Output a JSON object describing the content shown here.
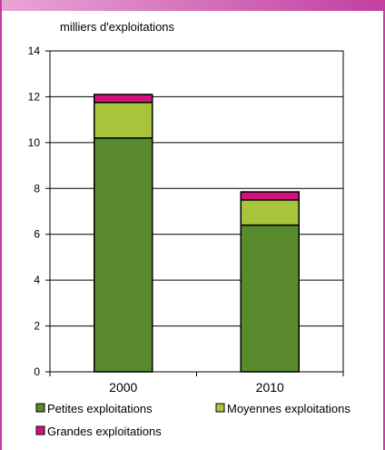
{
  "chart_data": {
    "type": "bar",
    "stacked": true,
    "unit_label": "milliers d'exploitations",
    "categories": [
      "2000",
      "2010"
    ],
    "series": [
      {
        "name": "Petites exploitations",
        "values": [
          10.2,
          6.4
        ],
        "color": "#5a8a2e"
      },
      {
        "name": "Moyennes exploitations",
        "values": [
          1.55,
          1.1
        ],
        "color": "#a8c43a"
      },
      {
        "name": "Grandes exploitations",
        "values": [
          0.35,
          0.35
        ],
        "color": "#d4117e"
      }
    ],
    "ylim": [
      0,
      14
    ],
    "yticks": [
      "0",
      "2",
      "4",
      "6",
      "8",
      "10",
      "12",
      "14"
    ],
    "grid": true,
    "legend_position": "bottom"
  }
}
